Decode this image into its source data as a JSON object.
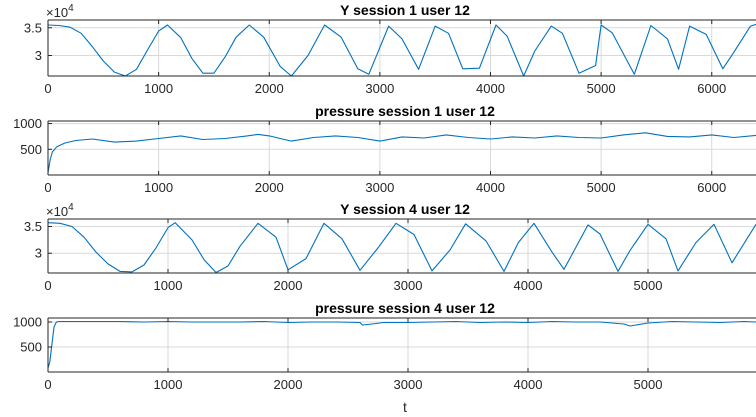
{
  "chart_data": [
    {
      "type": "line",
      "title": "Y session 1 user 12",
      "xlabel": "",
      "ylabel": "",
      "xlim": [
        0,
        6400
      ],
      "ylim": [
        26300,
        36400
      ],
      "xticks": [
        0,
        1000,
        2000,
        3000,
        4000,
        5000,
        6000
      ],
      "yticks": [
        30000,
        35000
      ],
      "ytick_labels": [
        "3",
        "3.5"
      ],
      "exponent_label": "×10",
      "exponent_power": "4",
      "grid": true,
      "color": "#0072BD",
      "series": [
        {
          "x": [
            0,
            100,
            200,
            300,
            400,
            500,
            600,
            700,
            800,
            900,
            1000,
            1080,
            1200,
            1300,
            1400,
            1500,
            1600,
            1700,
            1820,
            1950,
            2100,
            2200,
            2350,
            2500,
            2650,
            2800,
            2900,
            3080,
            3200,
            3350,
            3500,
            3620,
            3750,
            3900,
            4050,
            4150,
            4300,
            4400,
            4550,
            4650,
            4800,
            4950,
            5000,
            5100,
            5300,
            5450,
            5600,
            5700,
            5800,
            5950,
            6100,
            6200,
            6350,
            6400
          ],
          "y": [
            35500,
            35400,
            35100,
            34000,
            31600,
            29000,
            27000,
            26300,
            27500,
            31000,
            34400,
            35500,
            33200,
            29500,
            26800,
            26800,
            29700,
            33300,
            35500,
            33300,
            28000,
            26300,
            30000,
            35500,
            33300,
            27600,
            26600,
            35300,
            33000,
            27500,
            35300,
            34000,
            27600,
            27700,
            35500,
            33500,
            26300,
            30800,
            35300,
            34000,
            26800,
            28200,
            35500,
            34100,
            26600,
            35400,
            33000,
            27500,
            35300,
            33800,
            27600,
            30600,
            35300,
            35600
          ]
        }
      ]
    },
    {
      "type": "line",
      "title": "pressure session 1 user 12",
      "xlabel": "",
      "ylabel": "",
      "xlim": [
        0,
        6400
      ],
      "ylim": [
        0,
        1050
      ],
      "xticks": [
        0,
        1000,
        2000,
        3000,
        4000,
        5000,
        6000
      ],
      "yticks": [
        500,
        1000
      ],
      "grid": true,
      "color": "#0072BD",
      "series": [
        {
          "x": [
            0,
            20,
            40,
            80,
            150,
            250,
            400,
            600,
            800,
            1000,
            1200,
            1400,
            1600,
            1800,
            1900,
            2000,
            2200,
            2400,
            2600,
            2800,
            3000,
            3200,
            3400,
            3600,
            3800,
            4000,
            4200,
            4400,
            4600,
            4800,
            5000,
            5200,
            5400,
            5600,
            5800,
            6000,
            6200,
            6400
          ],
          "y": [
            50,
            300,
            450,
            550,
            620,
            670,
            700,
            640,
            660,
            710,
            760,
            690,
            710,
            760,
            790,
            760,
            660,
            730,
            760,
            730,
            660,
            740,
            720,
            780,
            730,
            700,
            740,
            720,
            760,
            730,
            720,
            780,
            820,
            750,
            740,
            780,
            730,
            770
          ]
        }
      ]
    },
    {
      "type": "line",
      "title": "Y session 4 user 12",
      "xlabel": "",
      "ylabel": "",
      "xlim": [
        0,
        5900
      ],
      "ylim": [
        26300,
        36400
      ],
      "xticks": [
        0,
        1000,
        2000,
        3000,
        4000,
        5000
      ],
      "yticks": [
        30000,
        35000
      ],
      "ytick_labels": [
        "3",
        "3.5"
      ],
      "exponent_label": "×10",
      "exponent_power": "4",
      "grid": true,
      "color": "#0072BD",
      "series": [
        {
          "x": [
            0,
            100,
            200,
            300,
            400,
            500,
            600,
            700,
            800,
            900,
            1000,
            1060,
            1200,
            1300,
            1400,
            1500,
            1600,
            1750,
            1900,
            2000,
            2150,
            2300,
            2450,
            2600,
            2750,
            2900,
            3050,
            3200,
            3350,
            3480,
            3650,
            3800,
            3920,
            4050,
            4200,
            4300,
            4500,
            4600,
            4750,
            4850,
            5000,
            5150,
            5250,
            5400,
            5550,
            5700,
            5900
          ],
          "y": [
            35700,
            35600,
            35000,
            33000,
            30200,
            28000,
            26600,
            26500,
            27800,
            31000,
            34800,
            35700,
            32500,
            28800,
            26400,
            27600,
            31300,
            35600,
            33000,
            26900,
            29000,
            35600,
            32700,
            26800,
            31000,
            35600,
            33500,
            26700,
            30600,
            35500,
            32300,
            26600,
            32000,
            35600,
            30200,
            27000,
            35300,
            33600,
            26600,
            30500,
            35400,
            32700,
            26700,
            32000,
            35400,
            28200,
            35400
          ]
        }
      ]
    },
    {
      "type": "line",
      "title": "pressure session 4 user 12",
      "xlabel": "t",
      "ylabel": "",
      "xlim": [
        0,
        5900
      ],
      "ylim": [
        0,
        1080
      ],
      "xticks": [
        0,
        1000,
        2000,
        3000,
        4000,
        5000
      ],
      "yticks": [
        500,
        1000
      ],
      "grid": true,
      "color": "#0072BD",
      "series": [
        {
          "x": [
            0,
            15,
            30,
            50,
            70,
            90,
            150,
            300,
            600,
            800,
            1000,
            1200,
            1400,
            1600,
            1800,
            2000,
            2200,
            2400,
            2600,
            2620,
            2700,
            2800,
            3000,
            3200,
            3400,
            3600,
            3800,
            4000,
            4200,
            4400,
            4600,
            4800,
            4850,
            5000,
            5200,
            5400,
            5600,
            5800,
            5900
          ],
          "y": [
            80,
            200,
            500,
            900,
            1000,
            1010,
            1010,
            1010,
            1010,
            1000,
            1010,
            1000,
            1000,
            1000,
            1010,
            990,
            1000,
            1000,
            990,
            940,
            960,
            990,
            990,
            1000,
            1010,
            990,
            1000,
            990,
            1010,
            1000,
            1000,
            960,
            920,
            980,
            1010,
            1000,
            990,
            1010,
            1000
          ]
        }
      ]
    }
  ]
}
